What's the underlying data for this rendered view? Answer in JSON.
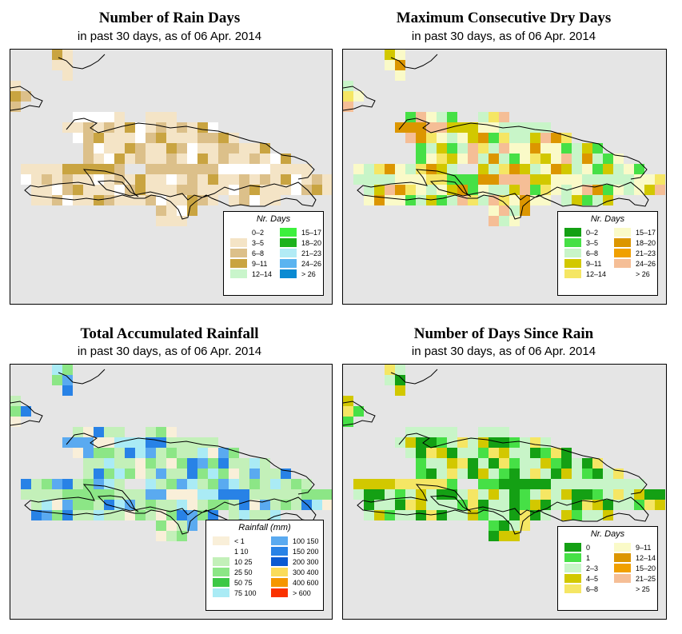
{
  "panels": [
    {
      "title": "Number of Rain Days",
      "subtitle": "in past 30 days, as of  06 Apr. 2014",
      "legend": {
        "title": "Nr. Days",
        "items": [
          {
            "label": "0–2",
            "color": "#ffffff"
          },
          {
            "label": "3–5",
            "color": "#f4e4c6"
          },
          {
            "label": "6–8",
            "color": "#dcc08a"
          },
          {
            "label": "9–11",
            "color": "#c9a441"
          },
          {
            "label": "12–14",
            "color": "#c9f5cb"
          },
          {
            "label": "15–17",
            "color": "#3df03d"
          },
          {
            "label": "18–20",
            "color": "#1cb21c"
          },
          {
            "label": "21–23",
            "color": "#b2ebf5"
          },
          {
            "label": "24–26",
            "color": "#5ab4f0"
          },
          {
            "label": "> 26",
            "color": "#0a8ad2"
          }
        ]
      }
    },
    {
      "title": "Maximum Consecutive Dry Days",
      "subtitle": "in past 30 days, as of  06 Apr. 2014",
      "legend": {
        "title": "Nr. Days",
        "items": [
          {
            "label": "0–2",
            "color": "#14a014"
          },
          {
            "label": "3–5",
            "color": "#46e046"
          },
          {
            "label": "6–8",
            "color": "#c8f5c8"
          },
          {
            "label": "9–11",
            "color": "#d2c800"
          },
          {
            "label": "12–14",
            "color": "#f5e664"
          },
          {
            "label": "15–17",
            "color": "#fafac8"
          },
          {
            "label": "18–20",
            "color": "#dc9600"
          },
          {
            "label": "21–23",
            "color": "#f0a000"
          },
          {
            "label": "24–26",
            "color": "#f5be96"
          },
          {
            "label": "> 26",
            "color": "#ffffff"
          }
        ]
      }
    },
    {
      "title": "Total Accumulated Rainfall",
      "subtitle": "in past 30 days, as of  06 Apr. 2014",
      "legend": {
        "title": "Rainfall (mm)",
        "items": [
          {
            "label": "< 1",
            "color": "#f9efd9"
          },
          {
            "label": "1    10",
            "color": "#ffffff"
          },
          {
            "label": "10    25",
            "color": "#c3f0b9"
          },
          {
            "label": "25    50",
            "color": "#8ce686"
          },
          {
            "label": "50    75",
            "color": "#3cc846"
          },
          {
            "label": "75   100",
            "color": "#aaebf5"
          },
          {
            "label": "100  150",
            "color": "#5aaaf0"
          },
          {
            "label": "150  200",
            "color": "#2882e6"
          },
          {
            "label": "200  300",
            "color": "#0a5ad2"
          },
          {
            "label": "300  400",
            "color": "#fadc5a"
          },
          {
            "label": "400  600",
            "color": "#f59600"
          },
          {
            "label": "> 600",
            "color": "#fa3200"
          }
        ]
      }
    },
    {
      "title": "Number of Days Since Rain",
      "subtitle": "in past 30 days, as of  06 Apr. 2014",
      "legend": {
        "title": "Nr. Days",
        "items": [
          {
            "label": "0",
            "color": "#14a014"
          },
          {
            "label": "1",
            "color": "#46e046"
          },
          {
            "label": "2–3",
            "color": "#c8f5c8"
          },
          {
            "label": "4–5",
            "color": "#d2c800"
          },
          {
            "label": "6–8",
            "color": "#f5e664"
          },
          {
            "label": "9–11",
            "color": "#fafac8"
          },
          {
            "label": "12–14",
            "color": "#dc9600"
          },
          {
            "label": "15–20",
            "color": "#f0a000"
          },
          {
            "label": "21–25",
            "color": "#f5be96"
          },
          {
            "label": "> 25",
            "color": "#ffffff"
          }
        ]
      }
    }
  ]
}
